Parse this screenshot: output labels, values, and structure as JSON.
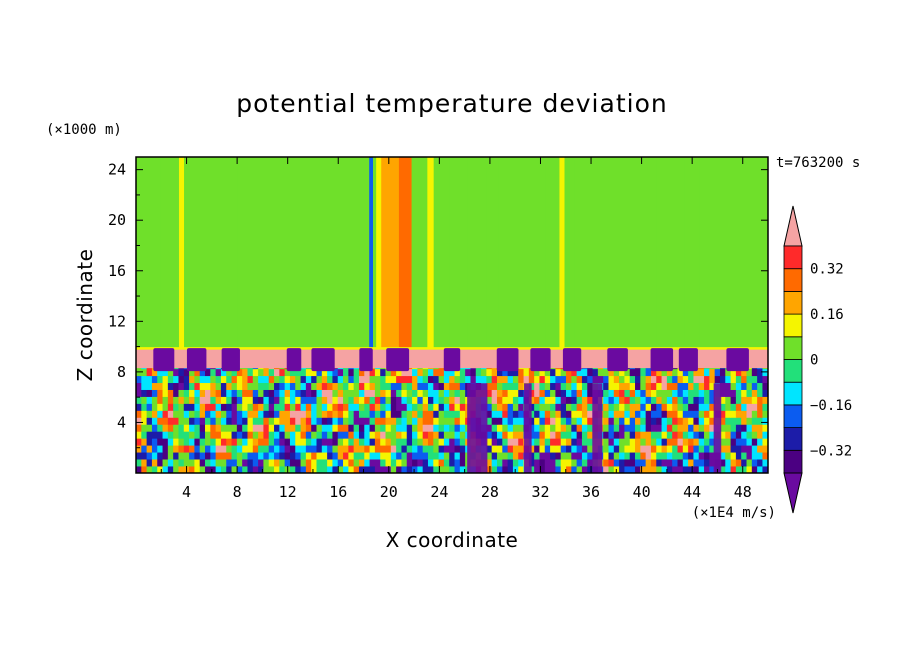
{
  "chart_data": {
    "type": "heatmap",
    "title": "potential temperature deviation",
    "xlabel": "X coordinate",
    "ylabel": "Z coordinate",
    "x_unit_label": "(×1E4 m/s)",
    "y_unit_label": "(×1000 m)",
    "time_label": "t=763200 s",
    "xlim": [
      0,
      50
    ],
    "ylim": [
      0,
      25
    ],
    "x_ticks": [
      4,
      8,
      12,
      16,
      20,
      24,
      28,
      32,
      36,
      40,
      44,
      48
    ],
    "y_ticks": [
      4,
      8,
      12,
      16,
      20,
      24
    ],
    "colorbar": {
      "levels": [
        -0.4,
        -0.32,
        -0.24,
        -0.16,
        -0.08,
        0,
        0.08,
        0.16,
        0.24,
        0.32,
        0.4
      ],
      "tick_labels": [
        "0.32",
        "0.16",
        "0",
        "−0.16",
        "−0.32"
      ],
      "colors_low_to_high": [
        "#4b0082",
        "#1c1ca8",
        "#0b5cf0",
        "#00e5ff",
        "#22e07a",
        "#6fe02a",
        "#f5f500",
        "#ffa500",
        "#ff6a00",
        "#ff2a2a"
      ],
      "under_color": "#6a0aa0",
      "over_color": "#f5a3a3"
    },
    "layers": {
      "stable_band_z": [
        8.3,
        9.8
      ],
      "stable_band_value": "above 0.4",
      "upper_region_background": 0.0,
      "lower_region_z": [
        0,
        8.3
      ]
    },
    "columns_upper": [
      {
        "x": 2.5,
        "w": 1.2,
        "v": 0.05
      },
      {
        "x": 3.6,
        "w": 0.4,
        "v": 0.12
      },
      {
        "x": 7.2,
        "w": 1.6,
        "v": 0.05
      },
      {
        "x": 10.5,
        "w": 1.2,
        "v": 0.05
      },
      {
        "x": 18.6,
        "w": 0.3,
        "v": -0.18
      },
      {
        "x": 19.4,
        "w": 0.8,
        "v": 0.09
      },
      {
        "x": 20.6,
        "w": 2.4,
        "v": 0.18
      },
      {
        "x": 21.3,
        "w": 1.0,
        "v": 0.26
      },
      {
        "x": 23.3,
        "w": 0.5,
        "v": 0.12
      },
      {
        "x": 25.5,
        "w": 1.4,
        "v": 0.05
      },
      {
        "x": 28.2,
        "w": 0.9,
        "v": 0.05
      },
      {
        "x": 32.8,
        "w": 0.8,
        "v": 0.05
      },
      {
        "x": 33.7,
        "w": 0.4,
        "v": 0.12
      },
      {
        "x": 35.4,
        "w": 1.4,
        "v": 0.05
      },
      {
        "x": 40.2,
        "w": 2.0,
        "v": 0.05
      },
      {
        "x": 44.0,
        "w": 1.2,
        "v": 0.05
      },
      {
        "x": 48.5,
        "w": 0.9,
        "v": 0.05
      }
    ],
    "purple_blobs_on_band": [
      2.2,
      4.8,
      7.5,
      12.5,
      14.8,
      18.2,
      20.7,
      25.0,
      29.4,
      32.0,
      34.5,
      38.1,
      41.6,
      43.7,
      47.6
    ],
    "purple_columns_lower": [
      {
        "x": 27.0,
        "w": 1.6
      },
      {
        "x": 36.5,
        "w": 0.8
      },
      {
        "x": 46.0,
        "w": 0.6
      },
      {
        "x": 31.0,
        "w": 0.6
      }
    ]
  }
}
